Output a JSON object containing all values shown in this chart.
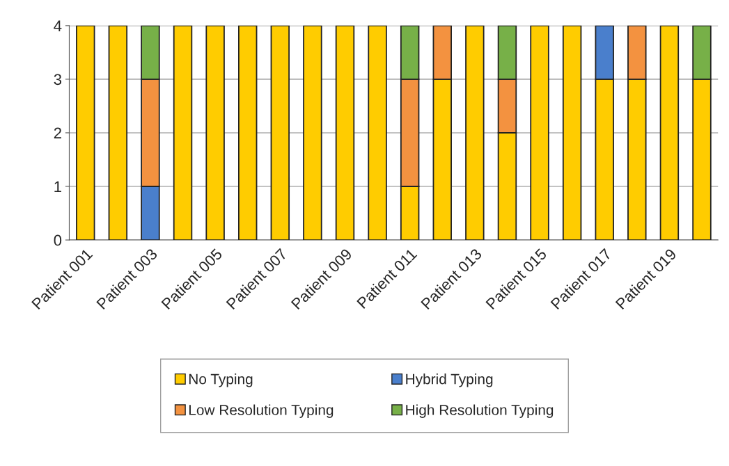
{
  "chart_data": {
    "type": "bar",
    "stacked": true,
    "categories": [
      "Patient 001",
      null,
      "Patient 003",
      null,
      "Patient 005",
      null,
      "Patient 007",
      null,
      "Patient 009",
      null,
      "Patient 011",
      null,
      "Patient 013",
      null,
      "Patient 015",
      null,
      "Patient 017",
      null,
      "Patient 019",
      null
    ],
    "series": [
      {
        "name": "No Typing",
        "color": "#ffcc00",
        "values": [
          4,
          4,
          0,
          4,
          4,
          4,
          4,
          4,
          4,
          4,
          1,
          3,
          4,
          2,
          4,
          4,
          3,
          3,
          4,
          3
        ]
      },
      {
        "name": "Hybrid Typing",
        "color": "#4a7fcc",
        "values": [
          0,
          0,
          1,
          0,
          0,
          0,
          0,
          0,
          0,
          0,
          0,
          0,
          0,
          0,
          0,
          0,
          1,
          0,
          0,
          0
        ]
      },
      {
        "name": "Low Resolution Typing",
        "color": "#f39240",
        "values": [
          0,
          0,
          2,
          0,
          0,
          0,
          0,
          0,
          0,
          0,
          2,
          1,
          0,
          1,
          0,
          0,
          0,
          1,
          0,
          0
        ]
      },
      {
        "name": "High Resolution Typing",
        "color": "#77b048",
        "values": [
          0,
          0,
          1,
          0,
          0,
          0,
          0,
          0,
          0,
          0,
          1,
          0,
          0,
          1,
          0,
          0,
          0,
          0,
          0,
          1
        ]
      }
    ],
    "ylim": [
      0,
      4
    ],
    "yticks": [
      0,
      1,
      2,
      3,
      4
    ],
    "grid": "y",
    "legend": "bottom"
  }
}
